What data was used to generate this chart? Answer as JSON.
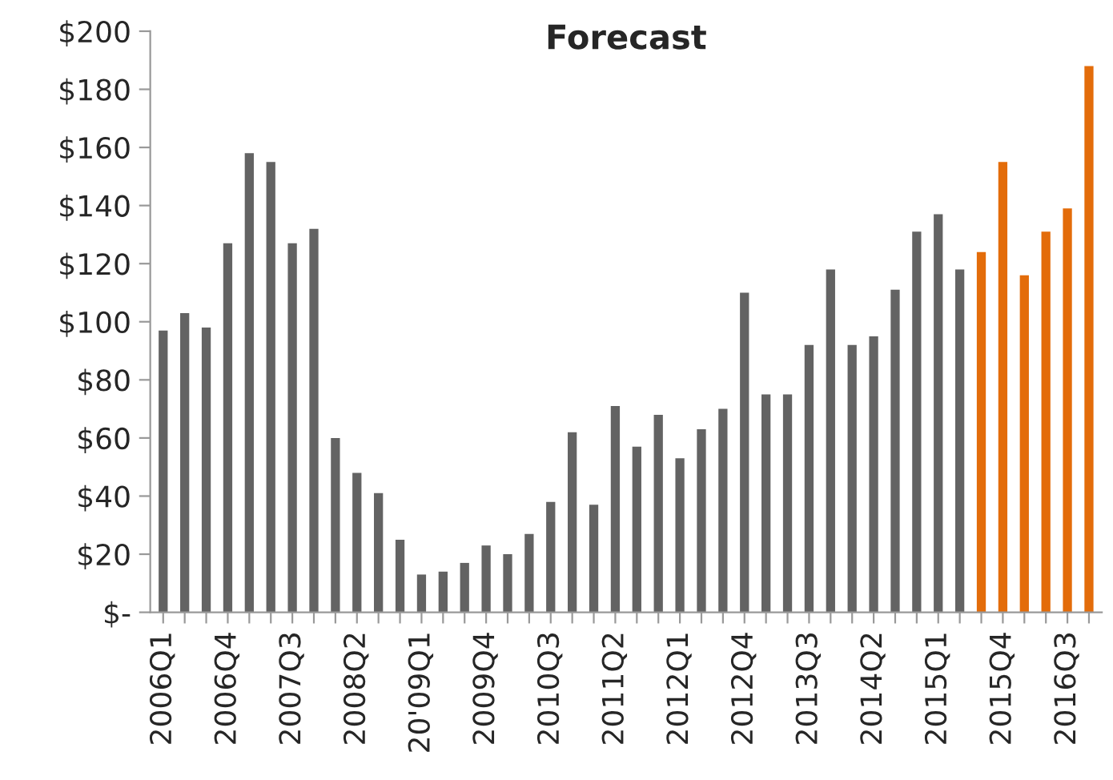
{
  "chart_data": {
    "type": "bar",
    "title": "Forecast",
    "categories": [
      "2006Q1",
      null,
      null,
      "2006Q4",
      null,
      null,
      "2007Q3",
      null,
      null,
      "2008Q2",
      null,
      null,
      "20'09Q1",
      null,
      null,
      "2009Q4",
      null,
      null,
      "2010Q3",
      null,
      null,
      "2011Q2",
      null,
      null,
      "2012Q1",
      null,
      null,
      "2012Q4",
      null,
      null,
      "2013Q3",
      null,
      null,
      "2014Q2",
      null,
      null,
      "2015Q1",
      null,
      null,
      "2015Q4",
      null,
      null,
      "2016Q3",
      null
    ],
    "values": [
      97,
      103,
      98,
      127,
      158,
      155,
      127,
      132,
      60,
      48,
      41,
      25,
      13,
      14,
      17,
      23,
      20,
      27,
      38,
      62,
      37,
      71,
      57,
      68,
      53,
      63,
      70,
      110,
      75,
      75,
      92,
      118,
      92,
      95,
      111,
      131,
      137,
      118,
      124,
      155,
      116,
      131,
      139,
      188
    ],
    "colors": [
      "#636363",
      "#636363",
      "#636363",
      "#636363",
      "#636363",
      "#636363",
      "#636363",
      "#636363",
      "#636363",
      "#636363",
      "#636363",
      "#636363",
      "#636363",
      "#636363",
      "#636363",
      "#636363",
      "#636363",
      "#636363",
      "#636363",
      "#636363",
      "#636363",
      "#636363",
      "#636363",
      "#636363",
      "#636363",
      "#636363",
      "#636363",
      "#636363",
      "#636363",
      "#636363",
      "#636363",
      "#636363",
      "#636363",
      "#636363",
      "#636363",
      "#636363",
      "#636363",
      "#636363",
      "#e36c0a",
      "#e36c0a",
      "#e36c0a",
      "#e36c0a",
      "#e36c0a",
      "#e36c0a"
    ],
    "ylim": [
      0,
      200
    ],
    "yticks": [
      {
        "value": 0,
        "label": "$-"
      },
      {
        "value": 20,
        "label": "$20"
      },
      {
        "value": 40,
        "label": "$40"
      },
      {
        "value": 60,
        "label": "$60"
      },
      {
        "value": 80,
        "label": "$80"
      },
      {
        "value": 100,
        "label": "$100"
      },
      {
        "value": 120,
        "label": "$120"
      },
      {
        "value": 140,
        "label": "$140"
      },
      {
        "value": 160,
        "label": "$160"
      },
      {
        "value": 180,
        "label": "$180"
      },
      {
        "value": 200,
        "label": "$200"
      }
    ],
    "grid": false,
    "legend": false
  }
}
